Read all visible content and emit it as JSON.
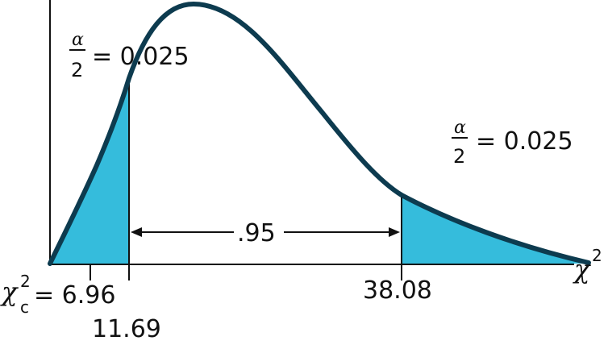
{
  "diagram": {
    "type": "chi-square-distribution",
    "colors": {
      "curve": "#0d3b4f",
      "shade": "#35bcdc",
      "axis": "#111111",
      "background": "#ffffff"
    },
    "left_tail": {
      "alpha_symbol": "α",
      "denominator": "2",
      "equals_value": "= 0.025",
      "area": 0.025
    },
    "right_tail": {
      "alpha_symbol": "α",
      "denominator": "2",
      "equals_value": "= 0.025",
      "area": 0.025
    },
    "middle": {
      "label": ".95",
      "area": 0.95
    },
    "x_axis": {
      "symbol": "χ",
      "superscript": "2"
    },
    "critical_value": {
      "symbol": "χ",
      "superscript": "2",
      "subscript": "c",
      "equals_value": "= 6.96"
    },
    "lower_bound": "11.69",
    "upper_bound": "38.08"
  }
}
